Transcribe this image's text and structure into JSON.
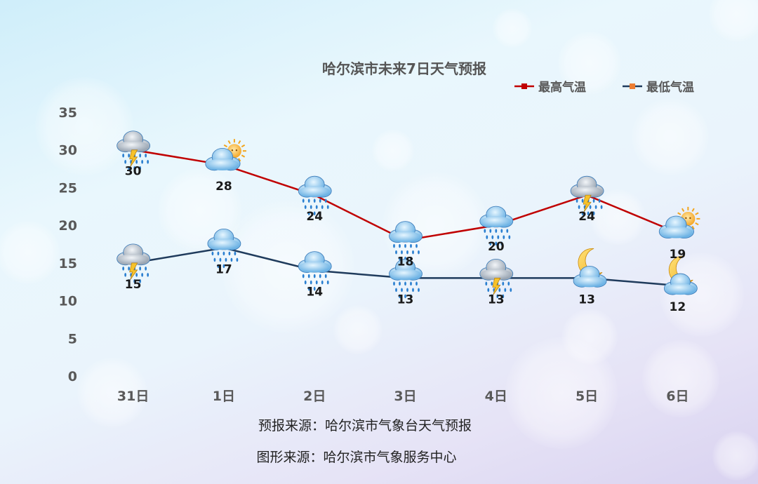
{
  "chart_data": {
    "type": "line",
    "title": "哈尔滨市未来7日天气预报",
    "categories": [
      "31日",
      "1日",
      "2日",
      "3日",
      "4日",
      "5日",
      "6日"
    ],
    "ylim": [
      0,
      35
    ],
    "yticks": [
      0,
      5,
      10,
      15,
      20,
      25,
      30,
      35
    ],
    "grid": false,
    "legend_position": "top-right",
    "series": [
      {
        "name": "最高气温",
        "color": "#c00000",
        "marker": "square",
        "values": [
          30,
          28,
          24,
          18,
          20,
          24,
          19
        ],
        "weather_icons": [
          "thunderstorm-icon",
          "partly-cloudy-sun-icon",
          "rain-icon",
          "rain-icon",
          "rain-icon",
          "thunderstorm-icon",
          "partly-cloudy-sun-icon"
        ]
      },
      {
        "name": "最低气温",
        "color": "#1f3b5c",
        "marker": "square",
        "marker_color": "#ed7d31",
        "values": [
          15,
          17,
          14,
          13,
          13,
          13,
          12
        ],
        "weather_icons": [
          "thunderstorm-icon",
          "rain-icon",
          "rain-icon",
          "rain-icon",
          "thunderstorm-icon",
          "cloudy-moon-icon",
          "cloudy-moon-icon"
        ]
      }
    ]
  },
  "footer": {
    "forecast_source": "预报来源：哈尔滨市气象台天气预报",
    "graphic_source": "图形来源：哈尔滨市气象服务中心"
  }
}
